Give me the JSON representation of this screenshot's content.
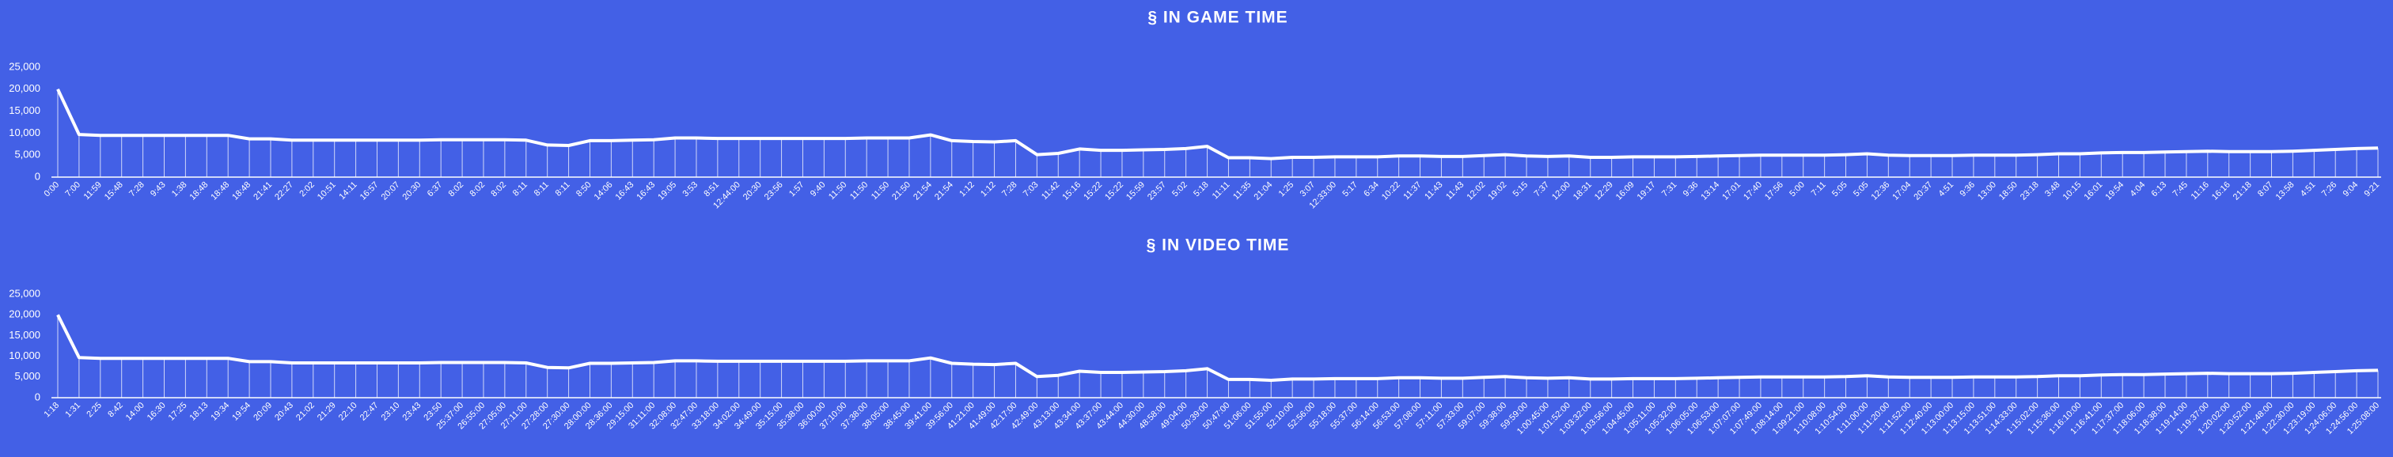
{
  "chart_data": [
    {
      "type": "line",
      "title": "§ IN GAME TIME",
      "categories": [
        "0:00",
        "7:00",
        "11:59",
        "15:48",
        "7:28",
        "9:43",
        "1:38",
        "18:48",
        "18:48",
        "18:48",
        "21:41",
        "22:27",
        "2:02",
        "10:51",
        "14:11",
        "16:57",
        "20:07",
        "20:30",
        "6:37",
        "8:02",
        "8:02",
        "8:02",
        "8:11",
        "8:11",
        "8:11",
        "8:50",
        "14:06",
        "16:43",
        "16:43",
        "19:05",
        "3:53",
        "8:51",
        "12:44:00",
        "20:30",
        "23:56",
        "1:57",
        "9:40",
        "11:50",
        "11:50",
        "11:50",
        "21:50",
        "21:54",
        "21:54",
        "1:12",
        "1:12",
        "7:28",
        "7:03",
        "11:42",
        "15:16",
        "15:22",
        "15:22",
        "15:59",
        "23:57",
        "5:02",
        "5:18",
        "11:11",
        "11:35",
        "21:04",
        "1:25",
        "3:07",
        "12:33:00",
        "5:17",
        "6:34",
        "10:22",
        "11:37",
        "11:43",
        "11:43",
        "12:02",
        "19:02",
        "5:15",
        "7:37",
        "12:00",
        "18:31",
        "12:29",
        "16:09",
        "19:17",
        "7:31",
        "9:36",
        "13:14",
        "17:01",
        "17:40",
        "17:56",
        "5:00",
        "7:11",
        "5:05",
        "5:05",
        "12:36",
        "17:04",
        "20:37",
        "4:51",
        "9:36",
        "13:00",
        "18:50",
        "23:18",
        "3:48",
        "10:15",
        "16:01",
        "19:54",
        "4:04",
        "6:13",
        "7:45",
        "11:16",
        "16:16",
        "21:18",
        "8:07",
        "13:58",
        "4:51",
        "7:26",
        "9:04",
        "9:21"
      ],
      "series": [
        {
          "color": "#ffffff",
          "values": [
            20000,
            9700,
            9500,
            9500,
            9500,
            9500,
            9500,
            9500,
            9500,
            8700,
            8700,
            8400,
            8400,
            8400,
            8400,
            8400,
            8400,
            8400,
            8500,
            8500,
            8500,
            8500,
            8400,
            7300,
            7200,
            8300,
            8300,
            8400,
            8500,
            8900,
            8900,
            8800,
            8800,
            8800,
            8800,
            8800,
            8800,
            8800,
            8900,
            8900,
            8900,
            9600,
            8300,
            8100,
            8000,
            8300,
            5100,
            5400,
            6400,
            6100,
            6100,
            6200,
            6300,
            6500,
            7000,
            4400,
            4400,
            4200,
            4500,
            4500,
            4600,
            4600,
            4600,
            4800,
            4800,
            4700,
            4700,
            4900,
            5100,
            4800,
            4700,
            4800,
            4500,
            4500,
            4600,
            4600,
            4600,
            4700,
            4800,
            4900,
            5000,
            5000,
            5000,
            5000,
            5100,
            5300,
            5000,
            4900,
            4900,
            4900,
            5000,
            5000,
            5000,
            5100,
            5300,
            5300,
            5500,
            5600,
            5600,
            5700,
            5800,
            5900,
            5800,
            5800,
            5800,
            5900,
            6100,
            6300,
            6500,
            6600
          ]
        }
      ],
      "ylim": [
        0,
        25000
      ],
      "yticks": [
        0,
        {
          "value": 5000,
          "label": "5,000"
        },
        {
          "value": 10000,
          "label": "10,000"
        },
        {
          "value": 15000,
          "label": "15,000"
        },
        {
          "value": 20000,
          "label": "20,000"
        },
        {
          "value": 25000,
          "label": "25,000"
        }
      ],
      "grid": false
    },
    {
      "type": "line",
      "title": "§ IN VIDEO TIME",
      "categories": [
        "1:18",
        "1:31",
        "2:25",
        "8:42",
        "14:00",
        "16:30",
        "17:25",
        "18:13",
        "19:34",
        "19:54",
        "20:09",
        "20:43",
        "21:02",
        "21:29",
        "22:10",
        "22:47",
        "23:10",
        "23:43",
        "23:50",
        "25:37:00",
        "26:55:00",
        "27:05:00",
        "27:11:00",
        "27:28:00",
        "27:30:00",
        "28:00:00",
        "28:36:00",
        "29:15:00",
        "31:11:00",
        "32:08:00",
        "32:47:00",
        "33:18:00",
        "34:02:00",
        "34:49:00",
        "35:15:00",
        "35:38:00",
        "36:00:00",
        "37:10:00",
        "37:38:00",
        "38:05:00",
        "38:45:00",
        "39:41:00",
        "39:56:00",
        "41:21:00",
        "41:49:00",
        "42:17:00",
        "42:49:00",
        "43:13:00",
        "43:34:00",
        "43:37:00",
        "43:44:00",
        "44:30:00",
        "48:58:00",
        "49:04:00",
        "50:39:00",
        "50:47:00",
        "51:06:00",
        "51:55:00",
        "52:10:00",
        "52:56:00",
        "55:18:00",
        "55:37:00",
        "56:14:00",
        "56:53:00",
        "57:08:00",
        "57:11:00",
        "57:33:00",
        "59:07:00",
        "59:38:00",
        "59:59:00",
        "1:00:45:00",
        "1:01:52:00",
        "1:03:32:00",
        "1:03:56:00",
        "1:04:45:00",
        "1:05:11:00",
        "1:05:32:00",
        "1:06:05:00",
        "1:06:53:00",
        "1:07:07:00",
        "1:07:49:00",
        "1:08:14:00",
        "1:09:21:00",
        "1:10:08:00",
        "1:10:54:00",
        "1:11:00:00",
        "1:11:20:00",
        "1:11:52:00",
        "1:12:40:00",
        "1:13:00:00",
        "1:13:15:00",
        "1:13:51:00",
        "1:14:33:00",
        "1:15:02:00",
        "1:15:36:00",
        "1:16:10:00",
        "1:16:41:00",
        "1:17:37:00",
        "1:18:06:00",
        "1:18:38:00",
        "1:19:14:00",
        "1:19:37:00",
        "1:20:02:00",
        "1:20:52:00",
        "1:21:48:00",
        "1:22:30:00",
        "1:23:19:00",
        "1:24:06:00",
        "1:24:56:00",
        "1:25:08:00"
      ],
      "series": [
        {
          "color": "#ffffff",
          "values": [
            20000,
            9700,
            9500,
            9500,
            9500,
            9500,
            9500,
            9500,
            9500,
            8700,
            8700,
            8400,
            8400,
            8400,
            8400,
            8400,
            8400,
            8400,
            8500,
            8500,
            8500,
            8500,
            8400,
            7300,
            7200,
            8300,
            8300,
            8400,
            8500,
            8900,
            8900,
            8800,
            8800,
            8800,
            8800,
            8800,
            8800,
            8800,
            8900,
            8900,
            8900,
            9600,
            8300,
            8100,
            8000,
            8300,
            5100,
            5400,
            6400,
            6100,
            6100,
            6200,
            6300,
            6500,
            7000,
            4400,
            4400,
            4200,
            4500,
            4500,
            4600,
            4600,
            4600,
            4800,
            4800,
            4700,
            4700,
            4900,
            5100,
            4800,
            4700,
            4800,
            4500,
            4500,
            4600,
            4600,
            4600,
            4700,
            4800,
            4900,
            5000,
            5000,
            5000,
            5000,
            5100,
            5300,
            5000,
            4900,
            4900,
            4900,
            5000,
            5000,
            5000,
            5100,
            5300,
            5300,
            5500,
            5600,
            5600,
            5700,
            5800,
            5900,
            5800,
            5800,
            5800,
            5900,
            6100,
            6300,
            6500,
            6600
          ]
        }
      ],
      "ylim": [
        0,
        25000
      ],
      "yticks": [
        0,
        {
          "value": 5000,
          "label": "5,000"
        },
        {
          "value": 10000,
          "label": "10,000"
        },
        {
          "value": 15000,
          "label": "15,000"
        },
        {
          "value": 20000,
          "label": "20,000"
        },
        {
          "value": 25000,
          "label": "25,000"
        }
      ],
      "grid": false
    }
  ]
}
